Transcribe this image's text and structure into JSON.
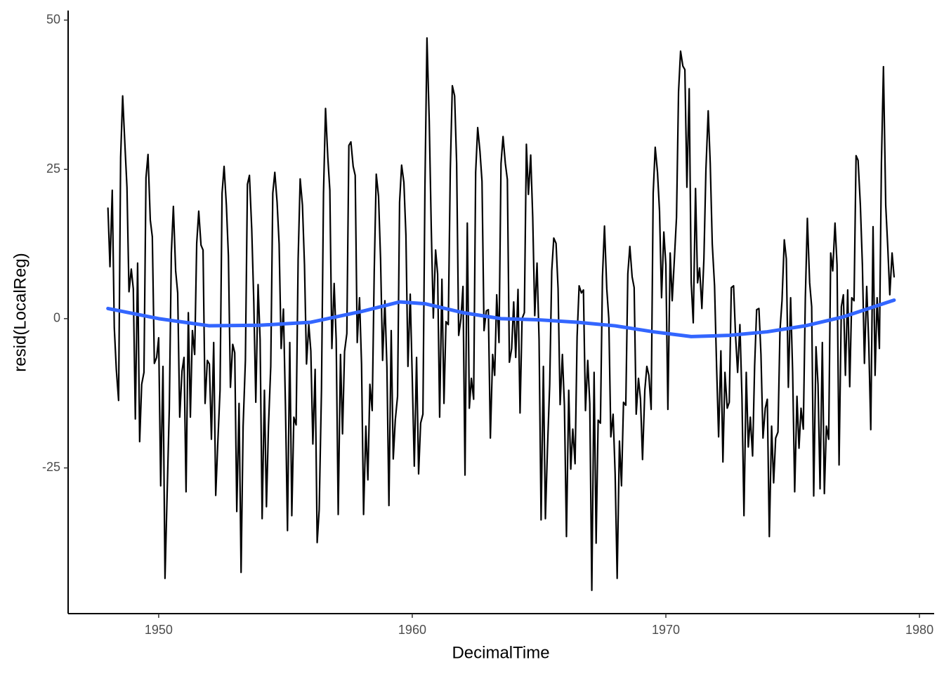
{
  "chart_data": {
    "type": "line",
    "xlabel": "DecimalTime",
    "ylabel": "resid(LocalReg)",
    "xlim": [
      1946.43,
      1980.58
    ],
    "ylim": [
      -49.4,
      51.6
    ],
    "xticks": [
      1950,
      1960,
      1970,
      1980
    ],
    "yticks": [
      -25,
      0,
      25,
      50
    ],
    "grid": false,
    "series": [
      {
        "color": "#000000",
        "x": [
          1948.0,
          1948.08,
          1948.17,
          1948.25,
          1948.33,
          1948.42,
          1948.5,
          1948.58,
          1948.67,
          1948.75,
          1948.83,
          1948.92,
          1949.0,
          1949.08,
          1949.17,
          1949.25,
          1949.33,
          1949.42,
          1949.5,
          1949.58,
          1949.67,
          1949.75,
          1949.83,
          1949.92,
          1950.0,
          1950.08,
          1950.17,
          1950.25,
          1950.33,
          1950.42,
          1950.5,
          1950.58,
          1950.67,
          1950.75,
          1950.83,
          1950.92,
          1951.0,
          1951.08,
          1951.17,
          1951.25,
          1951.33,
          1951.42,
          1951.5,
          1951.58,
          1951.67,
          1951.75,
          1951.83,
          1951.92,
          1952.0,
          1952.08,
          1952.17,
          1952.25,
          1952.33,
          1952.42,
          1952.5,
          1952.58,
          1952.67,
          1952.75,
          1952.83,
          1952.92,
          1953.0,
          1953.08,
          1953.17,
          1953.25,
          1953.33,
          1953.42,
          1953.5,
          1953.58,
          1953.67,
          1953.75,
          1953.83,
          1953.92,
          1954.0,
          1954.08,
          1954.17,
          1954.25,
          1954.33,
          1954.42,
          1954.5,
          1954.58,
          1954.67,
          1954.75,
          1954.83,
          1954.92,
          1955.0,
          1955.08,
          1955.17,
          1955.25,
          1955.33,
          1955.42,
          1955.5,
          1955.58,
          1955.67,
          1955.75,
          1955.83,
          1955.92,
          1956.0,
          1956.08,
          1956.17,
          1956.25,
          1956.33,
          1956.42,
          1956.5,
          1956.58,
          1956.67,
          1956.75,
          1956.83,
          1956.92,
          1957.0,
          1957.08,
          1957.17,
          1957.25,
          1957.33,
          1957.42,
          1957.5,
          1957.58,
          1957.67,
          1957.75,
          1957.83,
          1957.92,
          1958.0,
          1958.08,
          1958.17,
          1958.25,
          1958.33,
          1958.42,
          1958.5,
          1958.58,
          1958.67,
          1958.75,
          1958.83,
          1958.92,
          1959.0,
          1959.08,
          1959.17,
          1959.25,
          1959.33,
          1959.42,
          1959.5,
          1959.58,
          1959.67,
          1959.75,
          1959.83,
          1959.92,
          1960.0,
          1960.08,
          1960.17,
          1960.25,
          1960.33,
          1960.42,
          1960.5,
          1960.58,
          1960.67,
          1960.75,
          1960.83,
          1960.92,
          1961.0,
          1961.08,
          1961.17,
          1961.25,
          1961.33,
          1961.42,
          1961.5,
          1961.58,
          1961.67,
          1961.75,
          1961.83,
          1961.92,
          1962.0,
          1962.08,
          1962.17,
          1962.25,
          1962.33,
          1962.42,
          1962.5,
          1962.58,
          1962.67,
          1962.75,
          1962.83,
          1962.92,
          1963.0,
          1963.08,
          1963.17,
          1963.25,
          1963.33,
          1963.42,
          1963.5,
          1963.58,
          1963.67,
          1963.75,
          1963.83,
          1963.92,
          1964.0,
          1964.08,
          1964.17,
          1964.25,
          1964.33,
          1964.42,
          1964.5,
          1964.58,
          1964.67,
          1964.75,
          1964.83,
          1964.92,
          1965.0,
          1965.08,
          1965.17,
          1965.25,
          1965.33,
          1965.42,
          1965.5,
          1965.58,
          1965.67,
          1965.75,
          1965.83,
          1965.92,
          1966.0,
          1966.08,
          1966.17,
          1966.25,
          1966.33,
          1966.42,
          1966.5,
          1966.58,
          1966.67,
          1966.75,
          1966.83,
          1966.92,
          1967.0,
          1967.08,
          1967.17,
          1967.25,
          1967.33,
          1967.42,
          1967.5,
          1967.58,
          1967.67,
          1967.75,
          1967.83,
          1967.92,
          1968.0,
          1968.08,
          1968.17,
          1968.25,
          1968.33,
          1968.42,
          1968.5,
          1968.58,
          1968.67,
          1968.75,
          1968.83,
          1968.92,
          1969.0,
          1969.08,
          1969.17,
          1969.25,
          1969.33,
          1969.42,
          1969.5,
          1969.58,
          1969.67,
          1969.75,
          1969.83,
          1969.92,
          1970.0,
          1970.08,
          1970.17,
          1970.25,
          1970.33,
          1970.42,
          1970.5,
          1970.58,
          1970.67,
          1970.75,
          1970.83,
          1970.92,
          1971.0,
          1971.08,
          1971.17,
          1971.25,
          1971.33,
          1971.42,
          1971.5,
          1971.58,
          1971.67,
          1971.75,
          1971.83,
          1971.92,
          1972.0,
          1972.08,
          1972.17,
          1972.25,
          1972.33,
          1972.42,
          1972.5,
          1972.58,
          1972.67,
          1972.75,
          1972.83,
          1972.92,
          1973.0,
          1973.08,
          1973.17,
          1973.25,
          1973.33,
          1973.42,
          1973.5,
          1973.58,
          1973.67,
          1973.75,
          1973.83,
          1973.92,
          1974.0,
          1974.08,
          1974.17,
          1974.25,
          1974.33,
          1974.42,
          1974.5,
          1974.58,
          1974.67,
          1974.75,
          1974.83,
          1974.92,
          1975.0,
          1975.08,
          1975.17,
          1975.25,
          1975.33,
          1975.42,
          1975.5,
          1975.58,
          1975.67,
          1975.75,
          1975.83,
          1975.92,
          1976.0,
          1976.08,
          1976.17,
          1976.25,
          1976.33,
          1976.42,
          1976.5,
          1976.58,
          1976.67,
          1976.75,
          1976.83,
          1976.92,
          1977.0,
          1977.08,
          1977.17,
          1977.25,
          1977.33,
          1977.42,
          1977.5,
          1977.58,
          1977.67,
          1977.75,
          1977.83,
          1977.92,
          1978.0,
          1978.08,
          1978.17,
          1978.25,
          1978.33,
          1978.42,
          1978.5,
          1978.58,
          1978.67,
          1978.75,
          1978.83,
          1978.92,
          1979.0
        ],
        "values": [
          18.5,
          8.7,
          21.5,
          -1.5,
          -8.5,
          -13.7,
          27,
          37.3,
          29,
          22,
          4.5,
          8.3,
          5,
          -16.8,
          9.3,
          -20.6,
          -11,
          -9,
          23.6,
          27.5,
          16.5,
          13.7,
          -7.5,
          -6.5,
          -3.2,
          -28,
          -8,
          -43.5,
          -30,
          -15,
          11,
          18.8,
          8,
          4.3,
          -16.5,
          -8.8,
          -6.5,
          -29,
          1,
          -16.5,
          -2,
          -6,
          12.6,
          18,
          12.3,
          11.5,
          -14.2,
          -7,
          -7.6,
          -20.2,
          -4,
          -29.6,
          -21,
          -12,
          21,
          25.5,
          19,
          10.5,
          -11.5,
          -4.3,
          -5.7,
          -32.3,
          -14.2,
          -42.5,
          -18,
          -7,
          22.5,
          24,
          15,
          3,
          -14,
          5.7,
          -3.5,
          -33.5,
          -12,
          -31.5,
          -18,
          -8,
          21,
          24.5,
          19.5,
          12.5,
          -5,
          1.6,
          -14.7,
          -35.5,
          -4,
          -33,
          -16.5,
          -17.8,
          10,
          23.4,
          19,
          9,
          -7.6,
          -1,
          -5.4,
          -21,
          -8.5,
          -37.5,
          -32,
          -12,
          21,
          35.2,
          27,
          21.5,
          -5,
          5.9,
          -3.5,
          -32.8,
          -6,
          -19.3,
          -5.5,
          -2.5,
          29,
          29.6,
          25.5,
          24,
          -4,
          3.5,
          -7.6,
          -32.8,
          -18,
          -27,
          -11,
          -15.4,
          7.8,
          24.2,
          20.5,
          10,
          -7,
          3,
          -8,
          -31.3,
          -2,
          -23.5,
          -17,
          -13,
          19.5,
          25.7,
          22.8,
          14,
          -8,
          4.1,
          -10,
          -24.7,
          -6.5,
          -26,
          -17.5,
          -16,
          22,
          47,
          33,
          15,
          0.1,
          11.5,
          7.5,
          -16.5,
          6.6,
          -14.2,
          -0.5,
          -1,
          25,
          39,
          37.3,
          26,
          -2.8,
          0,
          5.4,
          -26.2,
          16,
          -15,
          -10,
          -13.5,
          24.5,
          32,
          28,
          23,
          -2,
          1.3,
          1.5,
          -20,
          -6,
          -9.5,
          4,
          -4,
          26,
          30.5,
          26,
          23.3,
          -7.3,
          -5,
          2.8,
          -6.5,
          4.9,
          -15.8,
          0,
          1,
          29.2,
          20.8,
          27.4,
          17,
          0.5,
          9.3,
          -3.5,
          -33.7,
          -8,
          -33.5,
          -22,
          -11,
          8,
          13.5,
          12.6,
          5,
          -14.4,
          -6,
          -14.6,
          -36.5,
          -12,
          -25.2,
          -18.5,
          -24.3,
          -3,
          5.5,
          4.3,
          4.8,
          -15.4,
          -7,
          -14.2,
          -45.5,
          -9,
          -37.6,
          -17,
          -17.5,
          7,
          15.5,
          5,
          0,
          -19.8,
          -16,
          -26,
          -43.5,
          -20.5,
          -28,
          -14,
          -14.5,
          7.5,
          12.1,
          7,
          5.2,
          -16,
          -10,
          -13.5,
          -23.6,
          -12,
          -8,
          -9.5,
          -15.2,
          21,
          28.7,
          24.5,
          18,
          3.5,
          14.5,
          9,
          -15.2,
          11,
          3,
          9.5,
          17,
          38,
          44.8,
          42.3,
          41.7,
          22,
          38.5,
          6,
          -0.7,
          21.8,
          6,
          8.5,
          1.7,
          10,
          25,
          34.8,
          26,
          12.5,
          5.5,
          -8,
          -19.8,
          -5.4,
          -24,
          -9,
          -15,
          -14,
          5.2,
          5.5,
          -3,
          -9,
          -1,
          -13,
          -33,
          -9,
          -21.5,
          -16.5,
          -23,
          -8,
          1.5,
          1.7,
          -6,
          -20,
          -15,
          -13.5,
          -36.5,
          -18,
          -27.5,
          -20,
          -19,
          -2,
          3,
          13.2,
          10,
          -11.5,
          3.5,
          -9,
          -29,
          -13,
          -21.7,
          -15,
          -18.5,
          3.5,
          16.8,
          6,
          2,
          -29.7,
          -4.7,
          -11,
          -28.5,
          -4,
          -29.3,
          -18,
          -20.2,
          11,
          8,
          16,
          9,
          -24.5,
          2,
          4,
          -9.5,
          4.8,
          -11.4,
          3.5,
          3,
          27.3,
          26.5,
          19,
          9,
          -7.5,
          5.4,
          -4,
          -18.6,
          15.4,
          -9.5,
          3.5,
          -5,
          26,
          42.2,
          19,
          12,
          4,
          11,
          7
        ]
      },
      {
        "color": "#3366ff",
        "x": [
          1948,
          1950,
          1952,
          1954,
          1956,
          1958,
          1959.5,
          1960.5,
          1962,
          1963.5,
          1965,
          1966.5,
          1968,
          1969.5,
          1971,
          1972.5,
          1974,
          1975.5,
          1977,
          1978,
          1979
        ],
        "values": [
          1.7,
          0,
          -1.2,
          -1.1,
          -0.6,
          1.2,
          2.8,
          2.5,
          1,
          0,
          -0.2,
          -0.6,
          -1.2,
          -2.2,
          -3,
          -2.8,
          -2.2,
          -1.2,
          0.3,
          1.7,
          3.1
        ]
      }
    ]
  }
}
